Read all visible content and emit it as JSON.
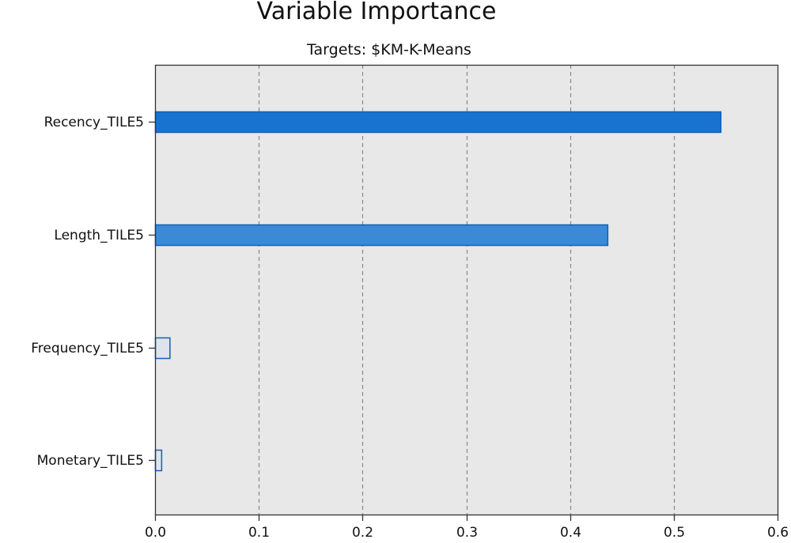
{
  "chart_data": {
    "type": "bar",
    "orientation": "horizontal",
    "title": "Variable Importance",
    "subtitle": "Targets: $KM-K-Means",
    "categories": [
      "Recency_TILE5",
      "Length_TILE5",
      "Frequency_TILE5",
      "Monetary_TILE5"
    ],
    "values": [
      0.545,
      0.436,
      0.014,
      0.006
    ],
    "xlim": [
      0,
      0.6
    ],
    "xticks": [
      0.0,
      0.1,
      0.2,
      0.3,
      0.4,
      0.5,
      0.6
    ],
    "xtick_labels": [
      "0.0",
      "0.1",
      "0.2",
      "0.3",
      "0.4",
      "0.5",
      "0.6"
    ],
    "xlabel": "",
    "ylabel": "",
    "grid": "vertical dashed",
    "colors": {
      "plot_background": "#e8e8e8",
      "grid": "#8a8a8a",
      "border": "#333333",
      "bar_fill": [
        "#1872d0",
        "#3c8ad6",
        "#dde4ec",
        "#dde4ec"
      ],
      "bar_stroke": "#1060b8"
    }
  }
}
